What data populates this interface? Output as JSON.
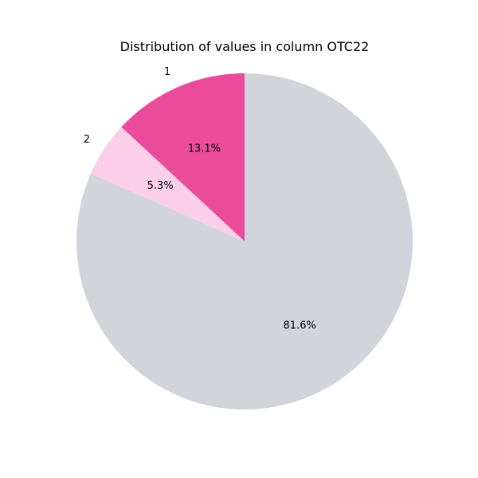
{
  "chart_data": {
    "type": "pie",
    "title": "Distribution of values in column OTC22",
    "slices": [
      {
        "label": "1",
        "value": 13.1,
        "pct_label": "13.1%",
        "color": "#ea4b9b"
      },
      {
        "label": "2",
        "value": 5.3,
        "pct_label": "5.3%",
        "color": "#fbcfe8"
      },
      {
        "label": "",
        "value": 81.6,
        "pct_label": "81.6%",
        "color": "#d1d5db"
      }
    ],
    "start_angle_deg": 90,
    "direction": "counterclockwise",
    "legend": "none"
  }
}
